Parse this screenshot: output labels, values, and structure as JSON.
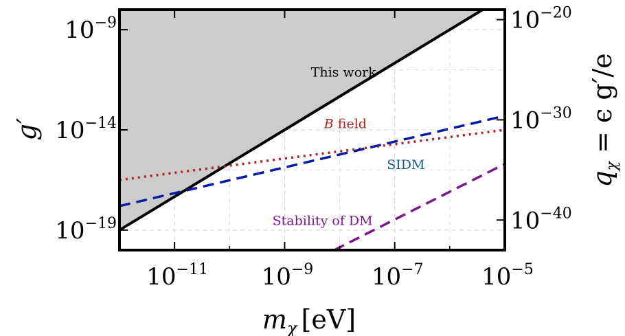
{
  "chart_data": {
    "type": "line",
    "title": "",
    "xlabel": "m_χ [eV]",
    "xlabel_main": "m",
    "xlabel_sub": "χ",
    "xlabel_unit": "[eV]",
    "ylabel": "g′",
    "ylabel_right": "q_χ = ϵ g′/e",
    "ylabel_right_main": "q",
    "ylabel_right_sub": "χ",
    "ylabel_right_rest": " = ϵ g′/e",
    "xscale": "log",
    "yscale": "log",
    "xlim": [
      1e-12,
      1e-05
    ],
    "ylim": [
      1e-20,
      1e-08
    ],
    "grid": true,
    "x_ticks": [
      {
        "value": 1e-11,
        "base": "10",
        "exp": "−11"
      },
      {
        "value": 1e-09,
        "base": "10",
        "exp": "−9"
      },
      {
        "value": 1e-07,
        "base": "10",
        "exp": "−7"
      },
      {
        "value": 1e-05,
        "base": "10",
        "exp": "−5"
      }
    ],
    "y_ticks": [
      {
        "value": 1e-09,
        "base": "10",
        "exp": "−9"
      },
      {
        "value": 1e-14,
        "base": "10",
        "exp": "−14"
      },
      {
        "value": 1e-19,
        "base": "10",
        "exp": "−19"
      }
    ],
    "y_right_ticks": [
      {
        "value": 1e-20,
        "base": "10",
        "exp": "−20"
      },
      {
        "value": 1e-30,
        "base": "10",
        "exp": "−30"
      },
      {
        "value": 1e-40,
        "base": "10",
        "exp": "−40"
      }
    ],
    "y_right_range": [
      1e-43,
      1e-19
    ],
    "series": [
      {
        "label": "This work",
        "style": "solid",
        "color": "#000000",
        "fill": "#cccccc",
        "x": [
          1e-12,
          3.98e-06
        ],
        "y": [
          1e-19,
          1e-08
        ]
      },
      {
        "label": "B field",
        "style": "dotted",
        "color": "#b22222",
        "x": [
          1e-12,
          1e-05
        ],
        "y": [
          3.16e-17,
          1e-14
        ]
      },
      {
        "label": "SIDM",
        "style": "dashed",
        "color": "#0a1aa0",
        "x": [
          1e-12,
          1e-05
        ],
        "y": [
          1.58e-18,
          5e-14
        ]
      },
      {
        "label": "Stability of DM",
        "style": "dashed",
        "color": "#7a1a8a",
        "x": [
          7.94e-09,
          1e-05
        ],
        "y": [
          1e-20,
          2e-16
        ]
      }
    ],
    "annotations": [
      {
        "text": "This work",
        "x": 3e-09,
        "y": 4.5e-12,
        "color": "#000000"
      },
      {
        "text_italic": "B",
        "text": " field",
        "x": 5.2e-09,
        "y": 1.2e-14,
        "color": "#b22222"
      },
      {
        "text": "SIDM",
        "x": 7.2e-08,
        "y": 1.1e-16,
        "color": "#1a5a8a"
      },
      {
        "text": "Stability of DM",
        "x": 6e-10,
        "y": 1.8e-19,
        "color": "#7a1a8a"
      }
    ]
  }
}
